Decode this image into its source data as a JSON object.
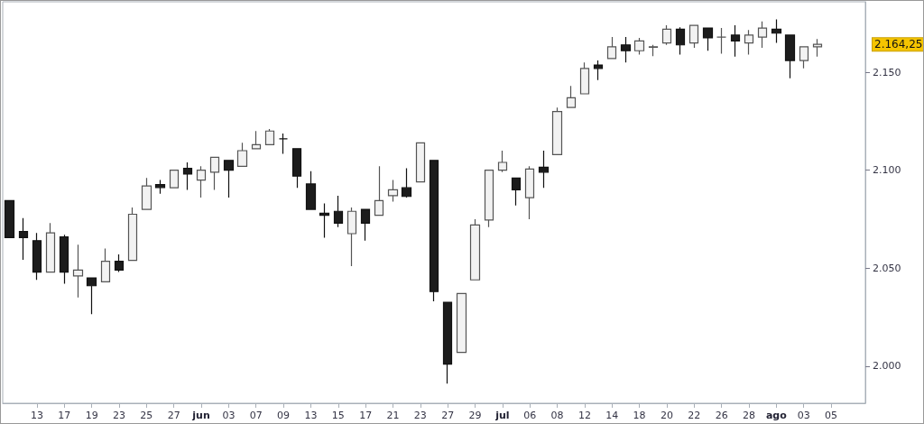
{
  "chart_data": {
    "type": "candlestick",
    "categories": [
      null,
      null,
      "13",
      null,
      "17",
      null,
      "19",
      null,
      "23",
      null,
      "25",
      null,
      "27",
      null,
      "jun",
      null,
      "03",
      null,
      "07",
      null,
      "09",
      null,
      "13",
      null,
      "15",
      null,
      "17",
      null,
      "21",
      null,
      "23",
      null,
      "27",
      null,
      "29",
      null,
      "jul",
      null,
      "06",
      null,
      "08",
      null,
      "12",
      null,
      "14",
      null,
      "18",
      null,
      "20",
      null,
      "22",
      null,
      "26",
      null,
      "28",
      null,
      "ago",
      null,
      "03",
      null,
      "05",
      null,
      null
    ],
    "ohlc": [
      [
        2084.5,
        2084.5,
        2065.6,
        2065.6
      ],
      [
        2068.7,
        2075.6,
        2054.3,
        2065.6
      ],
      [
        2064,
        2068,
        2044,
        2048
      ],
      [
        2048,
        2073,
        2048,
        2068
      ],
      [
        2066,
        2067,
        2042,
        2048
      ],
      [
        2046,
        2062,
        2035,
        2049
      ],
      [
        2045,
        2045,
        2026.5,
        2041
      ],
      [
        2043,
        2060,
        2043,
        2053.5
      ],
      [
        2053.5,
        2057,
        2048,
        2049
      ],
      [
        2054,
        2081,
        2054,
        2077.5
      ],
      [
        2080,
        2096,
        2080,
        2092
      ],
      [
        2092.7,
        2095,
        2088,
        2091.2
      ],
      [
        2091,
        2100,
        2091,
        2100
      ],
      [
        2101,
        2104,
        2090,
        2098
      ],
      [
        2095,
        2102,
        2086,
        2100
      ],
      [
        2099,
        2106.6,
        2090,
        2106.6
      ],
      [
        2105,
        2105,
        2086,
        2100
      ],
      [
        2102,
        2114,
        2102,
        2110
      ],
      [
        2111,
        2120,
        2111,
        2113
      ],
      [
        2113,
        2121,
        2113,
        2120
      ],
      [
        2116,
        2118.7,
        2108.4,
        2116
      ],
      [
        2111,
        2111,
        2091,
        2097
      ],
      [
        2093,
        2099.5,
        2080,
        2080
      ],
      [
        2078,
        2083,
        2065.5,
        2077
      ],
      [
        2079,
        2087,
        2071,
        2073
      ],
      [
        2067.6,
        2081,
        2051,
        2079
      ],
      [
        2080,
        2080,
        2064,
        2073
      ],
      [
        2077,
        2102,
        2077,
        2084.5
      ],
      [
        2087,
        2095,
        2084,
        2090
      ],
      [
        2091,
        2101,
        2086,
        2086.6
      ],
      [
        2094,
        2114,
        2094,
        2114
      ],
      [
        2105,
        2105,
        2033,
        2038
      ],
      [
        2032.6,
        2032.6,
        1991,
        2001
      ],
      [
        2007,
        2037,
        2007,
        2037
      ],
      [
        2044,
        2075,
        2044,
        2072
      ],
      [
        2074.6,
        2100,
        2071,
        2100
      ],
      [
        2100,
        2110,
        2099,
        2104
      ],
      [
        2096,
        2096,
        2082,
        2090
      ],
      [
        2086,
        2102,
        2075,
        2100.6
      ],
      [
        2101.5,
        2110,
        2091,
        2099
      ],
      [
        2108,
        2132,
        2108,
        2130
      ],
      [
        2132,
        2143,
        2132,
        2137
      ],
      [
        2139,
        2155,
        2139,
        2152
      ],
      [
        2153.7,
        2156,
        2146,
        2152
      ],
      [
        2157,
        2168,
        2157,
        2163
      ],
      [
        2164,
        2168,
        2155,
        2161
      ],
      [
        2161,
        2167.6,
        2159,
        2166
      ],
      [
        2162.8,
        2164,
        2158.3,
        2163
      ],
      [
        2165,
        2174,
        2164,
        2172
      ],
      [
        2172,
        2173,
        2159,
        2164
      ],
      [
        2165,
        2174,
        2162.5,
        2174
      ],
      [
        2172.6,
        2172.6,
        2161,
        2167.6
      ],
      [
        2168,
        2172.6,
        2159.5,
        2168
      ],
      [
        2169,
        2174,
        2158,
        2166
      ],
      [
        2165,
        2171.6,
        2159,
        2169
      ],
      [
        2168,
        2176,
        2162.5,
        2172.6
      ],
      [
        2172,
        2177,
        2165,
        2170
      ],
      [
        2169,
        2169,
        2147,
        2156
      ],
      [
        2156,
        2163,
        2152,
        2163
      ],
      [
        2163,
        2167,
        2158,
        2164.25
      ],
      null,
      null,
      null
    ],
    "ylim": [
      1981,
      2186
    ],
    "yticks": [
      {
        "value": 2000,
        "label": "2.000"
      },
      {
        "value": 2050,
        "label": "2.050"
      },
      {
        "value": 2100,
        "label": "2.100"
      },
      {
        "value": 2150,
        "label": "2.150"
      }
    ],
    "annotations": [
      "2.164,25"
    ],
    "grid": false
  }
}
